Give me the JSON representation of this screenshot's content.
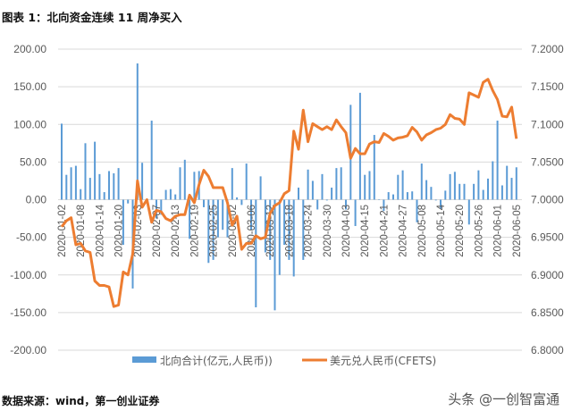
{
  "title": "图表 1：北向资金连续 11 周净买入",
  "footer": "数据来源：wind，第一创业证券",
  "watermark": "头条 @一创智富通",
  "chart_data": {
    "type": "bar+line",
    "title": "",
    "grid": true,
    "legend_position": "bottom",
    "left_axis": {
      "ylim": [
        -200,
        200
      ],
      "ticks": [
        "200.00",
        "150.00",
        "100.00",
        "50.00",
        "0.00",
        "-50.00",
        "-100.00",
        "-150.00",
        "-200.00"
      ]
    },
    "right_axis": {
      "ylim": [
        6.8,
        7.2
      ],
      "ticks": [
        "7.2000",
        "7.1500",
        "7.1000",
        "7.0500",
        "7.0000",
        "6.9500",
        "6.9000",
        "6.8500",
        "6.8000"
      ]
    },
    "x_tick_labels": [
      "2020-01-02",
      "2020-01-08",
      "2020-01-14",
      "2020-01-20",
      "2020-02-03",
      "2020-02-07",
      "2020-02-13",
      "2020-02-19",
      "2020-02-25",
      "2020-03-02",
      "2020-03-06",
      "2020-03-12",
      "2020-03-18",
      "2020-03-24",
      "2020-03-30",
      "2020-04-03",
      "2020-04-15",
      "2020-04-21",
      "2020-04-27",
      "2020-05-08",
      "2020-05-14",
      "2020-05-20",
      "2020-05-26",
      "2020-06-01",
      "2020-06-05"
    ],
    "x_tick_every": 4,
    "series": [
      {
        "name": "北向合计(亿元,人民币))",
        "type": "bar",
        "axis": "left",
        "color": "#5b9bd5",
        "values": [
          101,
          33,
          43,
          45,
          14,
          75,
          29,
          77,
          34,
          10,
          38,
          35,
          42,
          -60,
          -5,
          -118,
          181,
          49,
          0,
          105,
          -25,
          -20,
          13,
          14,
          7,
          43,
          53,
          -52,
          37,
          38,
          -10,
          -84,
          -80,
          -50,
          -40,
          -50,
          42,
          3,
          -7,
          48,
          -40,
          -143,
          31,
          -70,
          -80,
          -147,
          -100,
          -60,
          -80,
          -102,
          16,
          -80,
          40,
          25,
          -13,
          34,
          -1,
          16,
          42,
          43,
          -13,
          126,
          -35,
          142,
          33,
          38,
          86,
          0,
          -15,
          10,
          7,
          33,
          39,
          10,
          11,
          -30,
          48,
          26,
          17,
          -1,
          -12,
          12,
          34,
          37,
          21,
          21,
          -33,
          21,
          39,
          13,
          28,
          51,
          105,
          19,
          45,
          29,
          43
        ]
      },
      {
        "name": "美元兑人民币(CFETS)",
        "type": "line",
        "axis": "right",
        "color": "#ed7d31",
        "values": [
          6.964,
          6.972,
          6.976,
          6.94,
          6.942,
          6.932,
          6.93,
          6.892,
          6.886,
          6.886,
          6.884,
          6.858,
          6.86,
          6.904,
          6.9,
          6.928,
          7.025,
          6.99,
          7.0,
          6.97,
          6.986,
          6.984,
          6.975,
          6.972,
          6.978,
          6.98,
          6.98,
          7.006,
          6.996,
          7.02,
          7.039,
          7.031,
          7.016,
          7.016,
          7.016,
          6.996,
          6.966,
          6.978,
          6.934,
          6.942,
          6.942,
          6.952,
          6.948,
          6.95,
          6.982,
          6.992,
          6.996,
          7.008,
          7.012,
          7.091,
          7.067,
          7.119,
          7.077,
          7.101,
          7.097,
          7.093,
          7.097,
          7.093,
          7.106,
          7.097,
          7.089,
          7.055,
          7.068,
          7.061,
          7.061,
          7.074,
          7.077,
          7.076,
          7.088,
          7.084,
          7.079,
          7.082,
          7.083,
          7.085,
          7.096,
          7.09,
          7.079,
          7.086,
          7.089,
          7.093,
          7.095,
          7.1,
          7.113,
          7.108,
          7.107,
          7.1,
          7.142,
          7.139,
          7.136,
          7.156,
          7.16,
          7.145,
          7.133,
          7.111,
          7.11,
          7.123,
          7.081
        ]
      }
    ]
  }
}
